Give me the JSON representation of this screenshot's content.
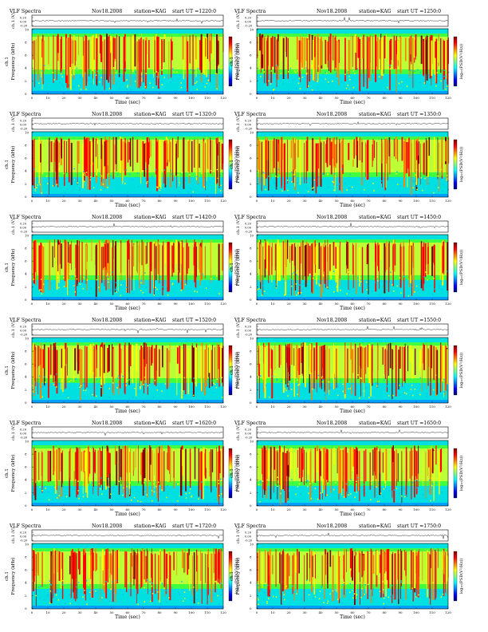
{
  "figure": {
    "title_prefix": "VLF Spectra",
    "date": "Nov18.2008",
    "station": "station=KAG",
    "start_label": "start UT =",
    "xlabel": "Time (sec)",
    "ylabel_top": "ch.1 (V)",
    "ylabel_freq": "Frequency (kHz)",
    "ylabel_ch": "ch.1",
    "colorbar_label": "log₁₀(PSD(V²/Hz))",
    "wave_ticks": [
      "0.20",
      "0.00",
      "-0.20"
    ],
    "freq_ticks": [
      "10",
      "8",
      "6",
      "4",
      "2",
      "0"
    ],
    "time_ticks": [
      "0",
      "10",
      "20",
      "30",
      "40",
      "50",
      "60",
      "70",
      "80",
      "90",
      "100",
      "110",
      "120"
    ]
  },
  "colors": {
    "colormap": [
      "#000080",
      "#0000ff",
      "#0080ff",
      "#00ffff",
      "#80ff80",
      "#ffff00",
      "#ff8000",
      "#ff0000",
      "#800000"
    ],
    "spectrogram_low": "#00e0e0",
    "spectrogram_mid": "#40ff40",
    "spectrogram_high": "#ff0000",
    "axis": "#000000"
  },
  "chart_data": [
    {
      "type": "heatmap",
      "panel": "1220",
      "title": "VLF Spectra   Nov18.2008   station=KAG   start UT =1220:0",
      "xlabel": "Time (sec)",
      "ylabel": "Frequency (kHz)",
      "xlim": [
        0,
        120
      ],
      "ylim": [
        0,
        10
      ],
      "wave_ylim": [
        -0.2,
        0.2
      ]
    },
    {
      "type": "heatmap",
      "panel": "1250",
      "title": "VLF Spectra   Nov18.2008   station=KAG   start UT =1250:0",
      "xlabel": "Time (sec)",
      "ylabel": "Frequency (kHz)",
      "xlim": [
        0,
        120
      ],
      "ylim": [
        0,
        10
      ],
      "wave_ylim": [
        -0.2,
        0.2
      ]
    },
    {
      "type": "heatmap",
      "panel": "1320",
      "title": "VLF Spectra   Nov18.2008   station=KAG   start UT =1320:0",
      "xlabel": "Time (sec)",
      "ylabel": "Frequency (kHz)",
      "xlim": [
        0,
        120
      ],
      "ylim": [
        0,
        10
      ],
      "wave_ylim": [
        -0.2,
        0.2
      ]
    },
    {
      "type": "heatmap",
      "panel": "1350",
      "title": "VLF Spectra   Nov18.2008   station=KAG   start UT =1350:0",
      "xlabel": "Time (sec)",
      "ylabel": "Frequency (kHz)",
      "xlim": [
        0,
        120
      ],
      "ylim": [
        0,
        10
      ],
      "wave_ylim": [
        -0.2,
        0.2
      ]
    },
    {
      "type": "heatmap",
      "panel": "1420",
      "title": "VLF Spectra   Nov18.2008   station=KAG   start UT =1420:0",
      "xlabel": "Time (sec)",
      "ylabel": "Frequency (kHz)",
      "xlim": [
        0,
        120
      ],
      "ylim": [
        0,
        10
      ],
      "wave_ylim": [
        -0.2,
        0.2
      ]
    },
    {
      "type": "heatmap",
      "panel": "1450",
      "title": "VLF Spectra   Nov18.2008   station=KAG   start UT =1450:0",
      "xlabel": "Time (sec)",
      "ylabel": "Frequency (kHz)",
      "xlim": [
        0,
        120
      ],
      "ylim": [
        0,
        10
      ],
      "wave_ylim": [
        -0.2,
        0.2
      ]
    },
    {
      "type": "heatmap",
      "panel": "1520",
      "title": "VLF Spectra   Nov18.2008   station=KAG   start UT =1520:0",
      "xlabel": "Time (sec)",
      "ylabel": "Frequency (kHz)",
      "xlim": [
        0,
        120
      ],
      "ylim": [
        0,
        10
      ],
      "wave_ylim": [
        -0.2,
        0.2
      ]
    },
    {
      "type": "heatmap",
      "panel": "1550",
      "title": "VLF Spectra   Nov18.2008   station=KAG   start UT =1550:0",
      "xlabel": "Time (sec)",
      "ylabel": "Frequency (kHz)",
      "xlim": [
        0,
        120
      ],
      "ylim": [
        0,
        10
      ],
      "wave_ylim": [
        -0.2,
        0.2
      ]
    },
    {
      "type": "heatmap",
      "panel": "1620",
      "title": "VLF Spectra   Nov18.2008   station=KAG   start UT =1620:0",
      "xlabel": "Time (sec)",
      "ylabel": "Frequency (kHz)",
      "xlim": [
        0,
        120
      ],
      "ylim": [
        0,
        10
      ],
      "wave_ylim": [
        -0.2,
        0.2
      ]
    },
    {
      "type": "heatmap",
      "panel": "1650",
      "title": "VLF Spectra   Nov18.2008   station=KAG   start UT =1650:0",
      "xlabel": "Time (sec)",
      "ylabel": "Frequency (kHz)",
      "xlim": [
        0,
        120
      ],
      "ylim": [
        0,
        10
      ],
      "wave_ylim": [
        -0.2,
        0.2
      ]
    },
    {
      "type": "heatmap",
      "panel": "1720",
      "title": "VLF Spectra   Nov18.2008   station=KAG   start UT =1720:0",
      "xlabel": "Time (sec)",
      "ylabel": "Frequency (kHz)",
      "xlim": [
        0,
        120
      ],
      "ylim": [
        0,
        10
      ],
      "wave_ylim": [
        -0.2,
        0.2
      ]
    },
    {
      "type": "heatmap",
      "panel": "1750",
      "title": "VLF Spectra   Nov18.2008   station=KAG   start UT =1750:0",
      "xlabel": "Time (sec)",
      "ylabel": "Frequency (kHz)",
      "xlim": [
        0,
        120
      ],
      "ylim": [
        0,
        10
      ],
      "wave_ylim": [
        -0.2,
        0.2
      ]
    }
  ]
}
